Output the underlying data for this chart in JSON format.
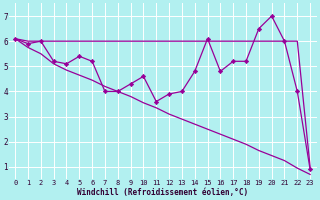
{
  "xlabel": "Windchill (Refroidissement éolien,°C)",
  "x": [
    0,
    1,
    2,
    3,
    4,
    5,
    6,
    7,
    8,
    9,
    10,
    11,
    12,
    13,
    14,
    15,
    16,
    17,
    18,
    19,
    20,
    21,
    22,
    23
  ],
  "line1": [
    6.1,
    5.9,
    6.0,
    5.2,
    5.1,
    5.4,
    5.2,
    4.0,
    4.0,
    4.3,
    4.6,
    3.6,
    3.9,
    4.0,
    4.8,
    6.1,
    4.8,
    5.2,
    5.2,
    6.5,
    7.0,
    6.0,
    4.0,
    0.9
  ],
  "line2": [
    6.1,
    6.0,
    6.0,
    6.0,
    6.0,
    6.0,
    6.0,
    6.0,
    6.0,
    6.0,
    6.0,
    6.0,
    6.0,
    6.0,
    6.0,
    6.0,
    6.0,
    6.0,
    6.0,
    6.0,
    6.0,
    6.0,
    6.0,
    1.0
  ],
  "line3": [
    6.1,
    5.75,
    5.5,
    5.1,
    4.85,
    4.65,
    4.45,
    4.2,
    4.0,
    3.8,
    3.55,
    3.35,
    3.1,
    2.9,
    2.7,
    2.5,
    2.3,
    2.1,
    1.9,
    1.65,
    1.45,
    1.25,
    0.95,
    0.7
  ],
  "line_color": "#990099",
  "bg_color": "#b2f0f0",
  "grid_color": "#ffffff",
  "ylim": [
    0.5,
    7.5
  ],
  "xlim": [
    -0.5,
    23.5
  ],
  "yticks": [
    1,
    2,
    3,
    4,
    5,
    6,
    7
  ],
  "xticks": [
    0,
    1,
    2,
    3,
    4,
    5,
    6,
    7,
    8,
    9,
    10,
    11,
    12,
    13,
    14,
    15,
    16,
    17,
    18,
    19,
    20,
    21,
    22,
    23
  ],
  "marker": "D",
  "markersize": 2.2,
  "linewidth": 0.9,
  "tick_fontsize": 5.0,
  "xlabel_fontsize": 5.5
}
